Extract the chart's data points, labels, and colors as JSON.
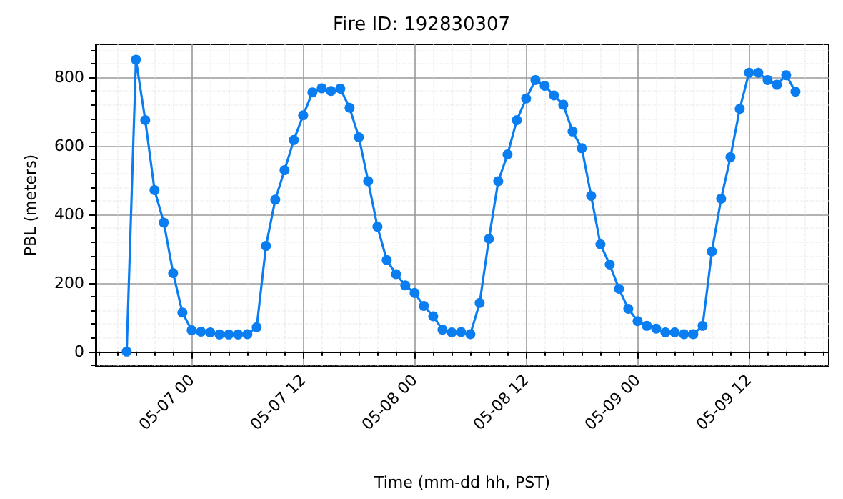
{
  "chart_data": {
    "type": "line",
    "title": "Fire ID: 192830307",
    "xlabel": "Time (mm-dd hh, PST)",
    "ylabel": "PBL (meters)",
    "x": [
      "--05-06T17:00",
      "--05-06T18:00",
      "--05-06T19:00",
      "--05-06T20:00",
      "--05-06T21:00",
      "--05-06T22:00",
      "--05-06T23:00",
      "--05-07T00:00",
      "--05-07T01:00",
      "--05-07T02:00",
      "--05-07T03:00",
      "--05-07T04:00",
      "--05-07T05:00",
      "--05-07T06:00",
      "--05-07T07:00",
      "--05-07T08:00",
      "--05-07T09:00",
      "--05-07T10:00",
      "--05-07T11:00",
      "--05-07T12:00",
      "--05-07T13:00",
      "--05-07T14:00",
      "--05-07T15:00",
      "--05-07T16:00",
      "--05-07T17:00",
      "--05-07T18:00",
      "--05-07T19:00",
      "--05-07T20:00",
      "--05-07T21:00",
      "--05-07T22:00",
      "--05-07T23:00",
      "--05-08T00:00",
      "--05-08T01:00",
      "--05-08T02:00",
      "--05-08T03:00",
      "--05-08T04:00",
      "--05-08T05:00",
      "--05-08T06:00",
      "--05-08T07:00",
      "--05-08T08:00",
      "--05-08T09:00",
      "--05-08T10:00",
      "--05-08T11:00",
      "--05-08T12:00",
      "--05-08T13:00",
      "--05-08T14:00",
      "--05-08T15:00",
      "--05-08T16:00",
      "--05-08T17:00",
      "--05-08T18:00",
      "--05-08T19:00",
      "--05-08T20:00",
      "--05-08T21:00",
      "--05-08T22:00",
      "--05-08T23:00",
      "--05-09T00:00",
      "--05-09T01:00",
      "--05-09T02:00",
      "--05-09T03:00",
      "--05-09T04:00",
      "--05-09T05:00",
      "--05-09T06:00",
      "--05-09T07:00",
      "--05-09T08:00",
      "--05-09T09:00",
      "--05-09T10:00",
      "--05-09T11:00",
      "--05-09T12:00",
      "--05-09T13:00",
      "--05-09T14:00",
      "--05-09T15:00",
      "--05-09T16:00",
      "--05-09T17:00"
    ],
    "series": [
      {
        "color": "#0a7ef0",
        "values": [
          0,
          851,
          675,
          471,
          376,
          229,
          114,
          62,
          58,
          56,
          50,
          50,
          50,
          51,
          71,
          308,
          443,
          529,
          617,
          689,
          756,
          768,
          760,
          767,
          711,
          625,
          497,
          364,
          267,
          226,
          193,
          171,
          133,
          103,
          64,
          56,
          57,
          51,
          142,
          329,
          497,
          575,
          675,
          738,
          792,
          775,
          747,
          720,
          642,
          593,
          454,
          313,
          254,
          183,
          125,
          89,
          75,
          67,
          56,
          56,
          51,
          51,
          75,
          292,
          446,
          567,
          708,
          813,
          813,
          792,
          778,
          806,
          758
        ]
      }
    ],
    "xlim": [
      "--05-06T13:40",
      "--05-09T20:35"
    ],
    "xticks": [
      {
        "value": "--05-06T14:00",
        "label": null
      },
      {
        "value": "--05-06T16:00",
        "label": null
      },
      {
        "value": "--05-06T18:00",
        "label": null
      },
      {
        "value": "--05-06T20:00",
        "label": null
      },
      {
        "value": "--05-06T22:00",
        "label": null
      },
      {
        "value": "--05-07T00:00",
        "label": "05-07 00"
      },
      {
        "value": "--05-07T02:00",
        "label": null
      },
      {
        "value": "--05-07T04:00",
        "label": null
      },
      {
        "value": "--05-07T06:00",
        "label": null
      },
      {
        "value": "--05-07T08:00",
        "label": null
      },
      {
        "value": "--05-07T10:00",
        "label": null
      },
      {
        "value": "--05-07T12:00",
        "label": "05-07 12"
      },
      {
        "value": "--05-07T14:00",
        "label": null
      },
      {
        "value": "--05-07T16:00",
        "label": null
      },
      {
        "value": "--05-07T18:00",
        "label": null
      },
      {
        "value": "--05-07T20:00",
        "label": null
      },
      {
        "value": "--05-07T22:00",
        "label": null
      },
      {
        "value": "--05-08T00:00",
        "label": "05-08 00"
      },
      {
        "value": "--05-08T02:00",
        "label": null
      },
      {
        "value": "--05-08T04:00",
        "label": null
      },
      {
        "value": "--05-08T06:00",
        "label": null
      },
      {
        "value": "--05-08T08:00",
        "label": null
      },
      {
        "value": "--05-08T10:00",
        "label": null
      },
      {
        "value": "--05-08T12:00",
        "label": "05-08 12"
      },
      {
        "value": "--05-08T14:00",
        "label": null
      },
      {
        "value": "--05-08T16:00",
        "label": null
      },
      {
        "value": "--05-08T18:00",
        "label": null
      },
      {
        "value": "--05-08T20:00",
        "label": null
      },
      {
        "value": "--05-08T22:00",
        "label": null
      },
      {
        "value": "--05-09T00:00",
        "label": "05-09 00"
      },
      {
        "value": "--05-09T02:00",
        "label": null
      },
      {
        "value": "--05-09T04:00",
        "label": null
      },
      {
        "value": "--05-09T06:00",
        "label": null
      },
      {
        "value": "--05-09T08:00",
        "label": null
      },
      {
        "value": "--05-09T10:00",
        "label": null
      },
      {
        "value": "--05-09T12:00",
        "label": "05-09 12"
      },
      {
        "value": "--05-09T14:00",
        "label": null
      },
      {
        "value": "--05-09T16:00",
        "label": null
      },
      {
        "value": "--05-09T18:00",
        "label": null
      },
      {
        "value": "--05-09T20:00",
        "label": null
      }
    ],
    "ylim": [
      -42,
      896
    ],
    "yticks": [
      {
        "value": -40,
        "label": null
      },
      0,
      {
        "value": 40,
        "label": null
      },
      {
        "value": 80,
        "label": null
      },
      {
        "value": 120,
        "label": null
      },
      {
        "value": 160,
        "label": null
      },
      200,
      {
        "value": 240,
        "label": null
      },
      {
        "value": 280,
        "label": null
      },
      {
        "value": 320,
        "label": null
      },
      {
        "value": 360,
        "label": null
      },
      400,
      {
        "value": 440,
        "label": null
      },
      {
        "value": 480,
        "label": null
      },
      {
        "value": 520,
        "label": null
      },
      {
        "value": 560,
        "label": null
      },
      600,
      {
        "value": 640,
        "label": null
      },
      {
        "value": 680,
        "label": null
      },
      {
        "value": 720,
        "label": null
      },
      {
        "value": 760,
        "label": null
      },
      800,
      {
        "value": 840,
        "label": null
      },
      {
        "value": 880,
        "label": null
      }
    ],
    "grid": true,
    "marker": "circle",
    "line_style": "solid"
  }
}
